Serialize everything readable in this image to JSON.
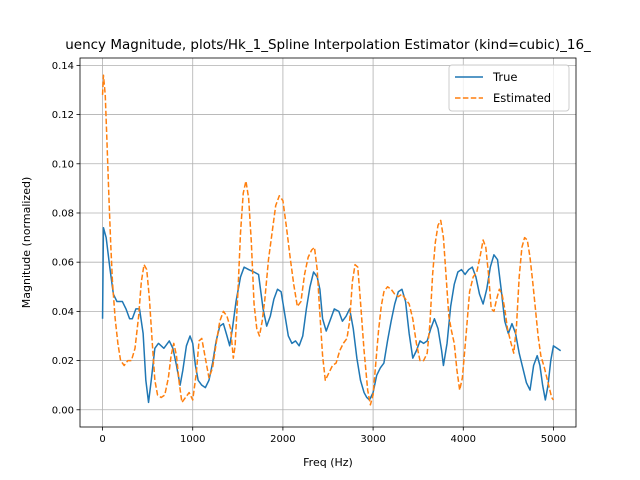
{
  "chart_data": {
    "type": "line",
    "title": "uency Magnitude, plots/Hk_1_Spline Interpolation Estimator (kind=cubic)_16_",
    "xlabel": "Freq (Hz)",
    "ylabel": "Magnitude (normalized)",
    "xlim": [
      -250,
      5250
    ],
    "ylim": [
      -0.007,
      0.143
    ],
    "xticks": [
      0,
      1000,
      2000,
      3000,
      4000,
      5000
    ],
    "xtick_labels": [
      "0",
      "1000",
      "2000",
      "3000",
      "4000",
      "5000"
    ],
    "yticks": [
      0.0,
      0.02,
      0.04,
      0.06,
      0.08,
      0.1,
      0.12,
      0.14
    ],
    "ytick_labels": [
      "0.00",
      "0.02",
      "0.04",
      "0.06",
      "0.08",
      "0.10",
      "0.12",
      "0.14"
    ],
    "grid": true,
    "legend_position": "upper right",
    "series": [
      {
        "name": "True",
        "color": "#1f77b4",
        "style": "solid",
        "points": [
          [
            0,
            0.037
          ],
          [
            10,
            0.074
          ],
          [
            40,
            0.07
          ],
          [
            80,
            0.058
          ],
          [
            120,
            0.047
          ],
          [
            160,
            0.044
          ],
          [
            220,
            0.044
          ],
          [
            260,
            0.041
          ],
          [
            300,
            0.037
          ],
          [
            330,
            0.037
          ],
          [
            370,
            0.041
          ],
          [
            410,
            0.041
          ],
          [
            450,
            0.031
          ],
          [
            480,
            0.012
          ],
          [
            510,
            0.003
          ],
          [
            540,
            0.012
          ],
          [
            580,
            0.025
          ],
          [
            620,
            0.027
          ],
          [
            680,
            0.025
          ],
          [
            740,
            0.028
          ],
          [
            780,
            0.025
          ],
          [
            820,
            0.018
          ],
          [
            860,
            0.01
          ],
          [
            890,
            0.016
          ],
          [
            930,
            0.026
          ],
          [
            970,
            0.03
          ],
          [
            1000,
            0.027
          ],
          [
            1030,
            0.018
          ],
          [
            1060,
            0.012
          ],
          [
            1100,
            0.01
          ],
          [
            1140,
            0.009
          ],
          [
            1180,
            0.012
          ],
          [
            1220,
            0.019
          ],
          [
            1260,
            0.028
          ],
          [
            1300,
            0.034
          ],
          [
            1340,
            0.035
          ],
          [
            1380,
            0.03
          ],
          [
            1410,
            0.026
          ],
          [
            1440,
            0.033
          ],
          [
            1480,
            0.044
          ],
          [
            1530,
            0.054
          ],
          [
            1570,
            0.058
          ],
          [
            1620,
            0.057
          ],
          [
            1680,
            0.056
          ],
          [
            1730,
            0.055
          ],
          [
            1780,
            0.041
          ],
          [
            1820,
            0.034
          ],
          [
            1860,
            0.038
          ],
          [
            1900,
            0.045
          ],
          [
            1940,
            0.049
          ],
          [
            1980,
            0.048
          ],
          [
            2020,
            0.039
          ],
          [
            2060,
            0.03
          ],
          [
            2100,
            0.027
          ],
          [
            2140,
            0.028
          ],
          [
            2180,
            0.026
          ],
          [
            2220,
            0.03
          ],
          [
            2260,
            0.041
          ],
          [
            2300,
            0.05
          ],
          [
            2340,
            0.056
          ],
          [
            2380,
            0.054
          ],
          [
            2410,
            0.049
          ],
          [
            2440,
            0.037
          ],
          [
            2480,
            0.032
          ],
          [
            2530,
            0.037
          ],
          [
            2570,
            0.041
          ],
          [
            2620,
            0.04
          ],
          [
            2660,
            0.036
          ],
          [
            2700,
            0.038
          ],
          [
            2740,
            0.041
          ],
          [
            2780,
            0.033
          ],
          [
            2820,
            0.021
          ],
          [
            2860,
            0.012
          ],
          [
            2900,
            0.007
          ],
          [
            2930,
            0.005
          ],
          [
            2960,
            0.004
          ],
          [
            3000,
            0.007
          ],
          [
            3040,
            0.014
          ],
          [
            3080,
            0.017
          ],
          [
            3120,
            0.019
          ],
          [
            3160,
            0.028
          ],
          [
            3200,
            0.036
          ],
          [
            3240,
            0.043
          ],
          [
            3280,
            0.048
          ],
          [
            3320,
            0.049
          ],
          [
            3360,
            0.044
          ],
          [
            3400,
            0.031
          ],
          [
            3440,
            0.021
          ],
          [
            3480,
            0.024
          ],
          [
            3520,
            0.028
          ],
          [
            3560,
            0.027
          ],
          [
            3600,
            0.028
          ],
          [
            3640,
            0.033
          ],
          [
            3680,
            0.037
          ],
          [
            3720,
            0.033
          ],
          [
            3760,
            0.024
          ],
          [
            3780,
            0.018
          ],
          [
            3820,
            0.027
          ],
          [
            3860,
            0.042
          ],
          [
            3900,
            0.051
          ],
          [
            3940,
            0.056
          ],
          [
            3980,
            0.057
          ],
          [
            4020,
            0.055
          ],
          [
            4060,
            0.057
          ],
          [
            4100,
            0.058
          ],
          [
            4140,
            0.054
          ],
          [
            4180,
            0.047
          ],
          [
            4220,
            0.043
          ],
          [
            4260,
            0.049
          ],
          [
            4300,
            0.058
          ],
          [
            4340,
            0.063
          ],
          [
            4380,
            0.061
          ],
          [
            4420,
            0.049
          ],
          [
            4460,
            0.036
          ],
          [
            4500,
            0.031
          ],
          [
            4540,
            0.035
          ],
          [
            4580,
            0.031
          ],
          [
            4620,
            0.023
          ],
          [
            4660,
            0.017
          ],
          [
            4700,
            0.011
          ],
          [
            4740,
            0.008
          ],
          [
            4780,
            0.018
          ],
          [
            4820,
            0.022
          ],
          [
            4850,
            0.018
          ],
          [
            4880,
            0.01
          ],
          [
            4910,
            0.004
          ],
          [
            4940,
            0.01
          ],
          [
            4970,
            0.02
          ],
          [
            5000,
            0.026
          ],
          [
            5040,
            0.025
          ],
          [
            5080,
            0.024
          ]
        ]
      },
      {
        "name": "Estimated",
        "color": "#ff7f0e",
        "style": "dashed",
        "points": [
          [
            0,
            0.128
          ],
          [
            10,
            0.136
          ],
          [
            30,
            0.128
          ],
          [
            50,
            0.108
          ],
          [
            70,
            0.087
          ],
          [
            90,
            0.068
          ],
          [
            110,
            0.052
          ],
          [
            140,
            0.037
          ],
          [
            170,
            0.027
          ],
          [
            200,
            0.02
          ],
          [
            240,
            0.018
          ],
          [
            280,
            0.02
          ],
          [
            320,
            0.02
          ],
          [
            360,
            0.025
          ],
          [
            400,
            0.038
          ],
          [
            430,
            0.052
          ],
          [
            460,
            0.059
          ],
          [
            490,
            0.057
          ],
          [
            520,
            0.045
          ],
          [
            550,
            0.028
          ],
          [
            580,
            0.012
          ],
          [
            610,
            0.006
          ],
          [
            650,
            0.005
          ],
          [
            690,
            0.006
          ],
          [
            730,
            0.013
          ],
          [
            760,
            0.022
          ],
          [
            790,
            0.027
          ],
          [
            820,
            0.022
          ],
          [
            850,
            0.011
          ],
          [
            880,
            0.003
          ],
          [
            920,
            0.005
          ],
          [
            960,
            0.007
          ],
          [
            1000,
            0.004
          ],
          [
            1040,
            0.015
          ],
          [
            1070,
            0.028
          ],
          [
            1100,
            0.029
          ],
          [
            1140,
            0.021
          ],
          [
            1180,
            0.013
          ],
          [
            1220,
            0.017
          ],
          [
            1260,
            0.027
          ],
          [
            1300,
            0.036
          ],
          [
            1340,
            0.04
          ],
          [
            1380,
            0.038
          ],
          [
            1420,
            0.033
          ],
          [
            1450,
            0.021
          ],
          [
            1470,
            0.026
          ],
          [
            1500,
            0.047
          ],
          [
            1530,
            0.072
          ],
          [
            1560,
            0.088
          ],
          [
            1590,
            0.093
          ],
          [
            1620,
            0.086
          ],
          [
            1650,
            0.068
          ],
          [
            1680,
            0.043
          ],
          [
            1710,
            0.033
          ],
          [
            1740,
            0.03
          ],
          [
            1770,
            0.036
          ],
          [
            1800,
            0.045
          ],
          [
            1840,
            0.061
          ],
          [
            1880,
            0.072
          ],
          [
            1920,
            0.083
          ],
          [
            1960,
            0.087
          ],
          [
            2000,
            0.085
          ],
          [
            2040,
            0.074
          ],
          [
            2080,
            0.062
          ],
          [
            2120,
            0.051
          ],
          [
            2160,
            0.042
          ],
          [
            2200,
            0.044
          ],
          [
            2240,
            0.055
          ],
          [
            2280,
            0.062
          ],
          [
            2320,
            0.065
          ],
          [
            2350,
            0.066
          ],
          [
            2380,
            0.057
          ],
          [
            2410,
            0.039
          ],
          [
            2440,
            0.022
          ],
          [
            2470,
            0.012
          ],
          [
            2510,
            0.015
          ],
          [
            2550,
            0.018
          ],
          [
            2590,
            0.019
          ],
          [
            2630,
            0.024
          ],
          [
            2670,
            0.027
          ],
          [
            2710,
            0.029
          ],
          [
            2740,
            0.036
          ],
          [
            2770,
            0.052
          ],
          [
            2800,
            0.059
          ],
          [
            2830,
            0.058
          ],
          [
            2860,
            0.044
          ],
          [
            2900,
            0.024
          ],
          [
            2940,
            0.008
          ],
          [
            2970,
            0.002
          ],
          [
            3000,
            0.006
          ],
          [
            3030,
            0.019
          ],
          [
            3060,
            0.032
          ],
          [
            3090,
            0.042
          ],
          [
            3120,
            0.048
          ],
          [
            3160,
            0.05
          ],
          [
            3200,
            0.049
          ],
          [
            3240,
            0.047
          ],
          [
            3280,
            0.046
          ],
          [
            3320,
            0.047
          ],
          [
            3360,
            0.045
          ],
          [
            3400,
            0.043
          ],
          [
            3440,
            0.037
          ],
          [
            3480,
            0.027
          ],
          [
            3520,
            0.02
          ],
          [
            3560,
            0.02
          ],
          [
            3600,
            0.023
          ],
          [
            3630,
            0.035
          ],
          [
            3660,
            0.055
          ],
          [
            3690,
            0.068
          ],
          [
            3720,
            0.075
          ],
          [
            3750,
            0.077
          ],
          [
            3780,
            0.07
          ],
          [
            3810,
            0.054
          ],
          [
            3840,
            0.038
          ],
          [
            3870,
            0.032
          ],
          [
            3900,
            0.027
          ],
          [
            3930,
            0.016
          ],
          [
            3960,
            0.008
          ],
          [
            3990,
            0.013
          ],
          [
            4030,
            0.03
          ],
          [
            4070,
            0.048
          ],
          [
            4110,
            0.054
          ],
          [
            4150,
            0.056
          ],
          [
            4190,
            0.063
          ],
          [
            4220,
            0.069
          ],
          [
            4250,
            0.066
          ],
          [
            4280,
            0.055
          ],
          [
            4310,
            0.041
          ],
          [
            4340,
            0.04
          ],
          [
            4370,
            0.045
          ],
          [
            4400,
            0.049
          ],
          [
            4430,
            0.047
          ],
          [
            4460,
            0.041
          ],
          [
            4490,
            0.033
          ],
          [
            4530,
            0.027
          ],
          [
            4560,
            0.023
          ],
          [
            4590,
            0.034
          ],
          [
            4620,
            0.054
          ],
          [
            4650,
            0.066
          ],
          [
            4680,
            0.07
          ],
          [
            4710,
            0.069
          ],
          [
            4740,
            0.062
          ],
          [
            4770,
            0.052
          ],
          [
            4800,
            0.041
          ],
          [
            4830,
            0.03
          ],
          [
            4860,
            0.022
          ],
          [
            4900,
            0.017
          ],
          [
            4940,
            0.011
          ],
          [
            4980,
            0.005
          ],
          [
            5000,
            0.004
          ]
        ]
      }
    ]
  }
}
